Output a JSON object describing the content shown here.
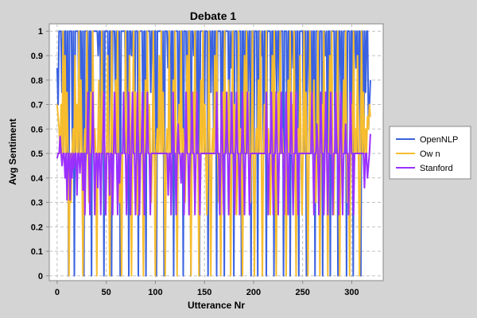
{
  "chart_data": {
    "type": "line",
    "title": "Debate 1",
    "xlabel": "Utterance Nr",
    "ylabel": "Avg Sentiment",
    "xlim": [
      -8,
      332
    ],
    "ylim": [
      -0.02,
      1.03
    ],
    "x_ticks": [
      0,
      50,
      100,
      150,
      200,
      250,
      300
    ],
    "y_ticks": [
      0,
      0.1,
      0.2,
      0.3,
      0.4,
      0.5,
      0.6,
      0.7,
      0.8,
      0.9,
      1
    ],
    "y_tick_labels": [
      "0",
      "0.1",
      "0.2",
      "0.3",
      "0.4",
      "0.5",
      "0.6",
      "0.7",
      "0.8",
      "0.9",
      "1"
    ],
    "x_tick_labels": [
      "0",
      "50",
      "100",
      "150",
      "200",
      "250",
      "300"
    ],
    "grid": true,
    "legend_position": "right",
    "x_count": 320,
    "series": [
      {
        "name": "OpenNLP",
        "color": "#3a62e0",
        "values": [
          0.85,
          0.7,
          1,
          1,
          1,
          0.75,
          1,
          0.5,
          1,
          1,
          0.5,
          1,
          0,
          1,
          1,
          1,
          0.5,
          1,
          0,
          1,
          1,
          1,
          1,
          0.5,
          1,
          1,
          0.5,
          1,
          0,
          1,
          1,
          1,
          1,
          0.5,
          1,
          1,
          0,
          1,
          1,
          1,
          1,
          1,
          1,
          0.9,
          1,
          1,
          0.5,
          1,
          1,
          0,
          1,
          1,
          1,
          1,
          0.5,
          1,
          1,
          0,
          1,
          1,
          1,
          0.75,
          1,
          1,
          0.5,
          1,
          0,
          1,
          1,
          1,
          1,
          1,
          0.5,
          1,
          1,
          0,
          1,
          1,
          0.9,
          1,
          1,
          0.5,
          1,
          1,
          1,
          0,
          1,
          1,
          1,
          1,
          0.5,
          1,
          1,
          0,
          1,
          1,
          1,
          1,
          0.75,
          1,
          1,
          0.5,
          1,
          1,
          0,
          1,
          1,
          1,
          1,
          1,
          0.5,
          1,
          0,
          1,
          1,
          1,
          0.85,
          1,
          1,
          0.5,
          1,
          1,
          0,
          1,
          1,
          1,
          1,
          0.5,
          1,
          0.75,
          1,
          1,
          0,
          1,
          1,
          1,
          0.5,
          1,
          1,
          1,
          0,
          1,
          1,
          0.9,
          1,
          1,
          0.5,
          1,
          1,
          0,
          1,
          1,
          1,
          1,
          0.5,
          1,
          1,
          1,
          0,
          1,
          1,
          0.75,
          1,
          1,
          0.5,
          1,
          1,
          0,
          1,
          1,
          1,
          1,
          0.5,
          1,
          1,
          0,
          1,
          1,
          1,
          1,
          0.5,
          1,
          0.85,
          1,
          1,
          0,
          1,
          1,
          1,
          0.5,
          1,
          1,
          1,
          0,
          1,
          1,
          0.5,
          1,
          1,
          1,
          0.75,
          1,
          1,
          0,
          1,
          1,
          0.5,
          1,
          1,
          1,
          0,
          1,
          1,
          1,
          0.9,
          1,
          0.5,
          1,
          1,
          0,
          1,
          1,
          1,
          1,
          0.5,
          1,
          1,
          0,
          1,
          1,
          0.75,
          1,
          1,
          0.5,
          1,
          1,
          1,
          0,
          1,
          1,
          1,
          0.5,
          1,
          1,
          0,
          1,
          1,
          0.85,
          1,
          1,
          0.5,
          1,
          1,
          0,
          1,
          1,
          1,
          1,
          0.5,
          1,
          1,
          0,
          1,
          1,
          0.75,
          1,
          1,
          0.5,
          1,
          1,
          0,
          1,
          1,
          1,
          0.5,
          1,
          1,
          1,
          0,
          1,
          1,
          0.9,
          1,
          0.5,
          1,
          1,
          0,
          1,
          1,
          1,
          1,
          0.5,
          1,
          1,
          0,
          1,
          1,
          0.75,
          1,
          0.5,
          1,
          1,
          1,
          0,
          1,
          1,
          1,
          0.5,
          1,
          1,
          0,
          1,
          1,
          0.85,
          1,
          0.5,
          1,
          1,
          0,
          1,
          1,
          0.5,
          1,
          0.75,
          1,
          1,
          0.6,
          0.7,
          0.8
        ]
      },
      {
        "name": "Ow n",
        "color": "#f7bd2e",
        "values": [
          0.7,
          0.65,
          0.6,
          0.5,
          0.7,
          0.5,
          1,
          0.5,
          0.9,
          0.5,
          0.75,
          0.5,
          0,
          0.5,
          0.3,
          0.5,
          0.6,
          0.5,
          0.9,
          0.5,
          0.7,
          0.5,
          1,
          0.5,
          0.8,
          0.5,
          0,
          0.5,
          0.6,
          0.5,
          1,
          0.5,
          0.3,
          0.5,
          0.75,
          0.5,
          1,
          0.5,
          0.6,
          0.5,
          0,
          0.5,
          0.8,
          0.5,
          0.5,
          1,
          0.5,
          0.7,
          0.5,
          0.25,
          0.5,
          0.9,
          0.5,
          0,
          0.5,
          1,
          0.5,
          0.6,
          0.5,
          0.8,
          0.5,
          1,
          0.5,
          0.3,
          0.5,
          0,
          0.5,
          0.7,
          0.5,
          1,
          0.5,
          0.6,
          0.5,
          0.9,
          0.5,
          0,
          0.5,
          1,
          0.5,
          0.75,
          0.5,
          0.25,
          0.5,
          1,
          0.5,
          0.6,
          0.5,
          0,
          0.5,
          0.8,
          0.5,
          1,
          0.5,
          0.7,
          0.5,
          0.3,
          0.5,
          1,
          0.5,
          0,
          0.5,
          0.6,
          0.5,
          0.9,
          0.5,
          1,
          0.5,
          0.75,
          0.5,
          0,
          0.5,
          0.6,
          0.5,
          1,
          0.5,
          0.25,
          0.5,
          0.8,
          0.5,
          1,
          0.5,
          0,
          0.5,
          0.7,
          0.5,
          1,
          0.5,
          0.6,
          0.5,
          0.3,
          0.5,
          0.9,
          0.5,
          1,
          0.5,
          0,
          0.5,
          0.75,
          0.5,
          1,
          0.5,
          0.6,
          0.5,
          0,
          0.5,
          0.8,
          0.5,
          1,
          0.5,
          0.7,
          0.5,
          0.25,
          0.5,
          1,
          0.5,
          0,
          0.5,
          0.6,
          0.5,
          0.9,
          0.5,
          1,
          0.5,
          0.3,
          0.5,
          0,
          0.5,
          0.75,
          0.5,
          1,
          0.5,
          0.6,
          0.5,
          0.8,
          0.5,
          0,
          0.5,
          1,
          0.5,
          0.7,
          0.5,
          0.25,
          0.5,
          1,
          0.5,
          0.6,
          0.5,
          0,
          0.5,
          0.9,
          0.5,
          1,
          0.5,
          0.75,
          0.5,
          0.3,
          0.5,
          1,
          0.5,
          0,
          0.5,
          0.6,
          0.5,
          0.8,
          0.5,
          1,
          0.5,
          0,
          0.5,
          0.7,
          0.5,
          1,
          0.5,
          0.6,
          0.5,
          0.25,
          0.5,
          0.9,
          0.5,
          1,
          0.5,
          0,
          0.5,
          0.75,
          0.5,
          1,
          0.5,
          0.6,
          0.5,
          0.3,
          0.5,
          0,
          0.5,
          0.8,
          0.5,
          1,
          0.5,
          0.7,
          0.5,
          1,
          0.5,
          0,
          0.5,
          0.6,
          0.5,
          0.9,
          0.5,
          0.25,
          0.5,
          1,
          0.5,
          0.75,
          0.5,
          0,
          0.5,
          1,
          0.5,
          0.6,
          0.5,
          0.8,
          0.5,
          0.3,
          0.5,
          1,
          0.5,
          0,
          0.5,
          0.7,
          0.5,
          1,
          0.5,
          0.6,
          0.5,
          0,
          0.5,
          0.9,
          0.5,
          1,
          0.5,
          0.25,
          0.5,
          0.75,
          0.5,
          1,
          0.5,
          0,
          0.5,
          0.6,
          0.5,
          0.8,
          0.5,
          1,
          0.5,
          0.3,
          0.5,
          0,
          0.5,
          0.7,
          0.5,
          1,
          0.5,
          0.6,
          0.5,
          0.9,
          0.5,
          0,
          0.5,
          1,
          0.5,
          0.75,
          0.5,
          0.6,
          0.5,
          0.65,
          0.6,
          0.7,
          0.65
        ]
      },
      {
        "name": "Stanford",
        "color": "#9b30ff",
        "values": [
          0.48,
          0.5,
          0.5,
          0.57,
          0.5,
          0.45,
          0.5,
          0.5,
          0.4,
          0.5,
          0.31,
          0.5,
          0.5,
          0.31,
          0.5,
          0.4,
          0.5,
          0.44,
          0.5,
          0.5,
          0.33,
          0.5,
          0.5,
          0.42,
          0.5,
          0.5,
          0.35,
          0.5,
          0.25,
          0.5,
          0.5,
          0.75,
          0.5,
          0.25,
          0.5,
          0.5,
          0.75,
          0.5,
          0.25,
          0.5,
          0.5,
          0.36,
          0.5,
          0.5,
          0.25,
          0.5,
          0.5,
          0.75,
          0.5,
          0.25,
          0.5,
          0.5,
          0.5,
          0.33,
          0.5,
          0.5,
          0.25,
          0.5,
          0.75,
          0.5,
          0.5,
          0.25,
          0.5,
          0.38,
          0.5,
          0.5,
          0.5,
          0.75,
          0.5,
          0.5,
          0.25,
          0.5,
          0.75,
          0.5,
          0.25,
          0.5,
          0.75,
          0.5,
          0.5,
          0.25,
          0.5,
          0.75,
          0.5,
          0.25,
          0.5,
          0.5,
          0.75,
          0.5,
          0.25,
          0.5,
          0.5,
          0.75,
          0.5,
          0.5,
          0.25,
          0.5,
          0.5,
          0.5,
          0.5,
          0.5,
          0.5,
          0.5,
          0.5,
          0.5,
          0.5,
          0.5,
          0.5,
          0.5,
          0.5,
          0.5,
          0.5,
          0.5,
          0.33,
          0.5,
          0.5,
          0.25,
          0.5,
          0.75,
          0.5,
          0.5,
          0.25,
          0.5,
          0.62,
          0.5,
          0.5,
          0.38,
          0.5,
          0.5,
          0.25,
          0.5,
          0.75,
          0.5,
          0.5,
          0.25,
          0.5,
          0.5,
          0.75,
          0.5,
          0.5,
          0.25,
          0.5,
          0.75,
          0.5,
          0.5,
          0.25,
          0.5,
          0.5,
          0.5,
          0.5,
          0.5,
          0.5,
          0.5,
          0.5,
          0.5,
          0.5,
          0.5,
          0.5,
          0.5,
          0.5,
          0.5,
          0.5,
          0.75,
          0.5,
          0.5,
          0.25,
          0.5,
          0.75,
          0.5,
          0.25,
          0.5,
          0.5,
          0.75,
          0.5,
          0.25,
          0.5,
          0.5,
          0.75,
          0.5,
          0.5,
          0.25,
          0.5,
          0.75,
          0.5,
          0.5,
          0.25,
          0.5,
          0.5,
          0.75,
          0.5,
          0.25,
          0.5,
          0.5,
          0.75,
          0.5,
          0.25,
          0.5,
          0.5,
          0.5,
          0.5,
          0.5,
          0.5,
          0.5,
          0.5,
          0.5,
          0.5,
          0.5,
          0.5,
          0.5,
          0.5,
          0.5,
          0.5,
          0.75,
          0.5,
          0.25,
          0.5,
          0.5,
          0.75,
          0.5,
          0.25,
          0.5,
          0.5,
          0.75,
          0.5,
          0.25,
          0.5,
          0.5,
          0.75,
          0.5,
          0.5,
          0.25,
          0.5,
          0.75,
          0.5,
          0.25,
          0.5,
          0.5,
          0.75,
          0.5,
          0.25,
          0.5,
          0.5,
          0.75,
          0.5,
          0.25,
          0.5,
          0.5,
          0.5,
          0.5,
          0.5,
          0.5,
          0.5,
          0.5,
          0.5,
          0.5,
          0.5,
          0.5,
          0.5,
          0.75,
          0.5,
          0.25,
          0.5,
          0.5,
          0.62,
          0.5,
          0.25,
          0.5,
          0.75,
          0.5,
          0.5,
          0.25,
          0.5,
          0.75,
          0.5,
          0.25,
          0.5,
          0.5,
          0.75,
          0.5,
          0.25,
          0.5,
          0.5,
          0.75,
          0.5,
          0.5,
          0.25,
          0.5,
          0.75,
          0.5,
          0.25,
          0.5,
          0.5,
          0.62,
          0.5,
          0.5,
          0.25,
          0.5,
          0.75,
          0.5,
          0.5,
          0.25,
          0.5,
          0.5,
          0.5,
          0.5,
          0.5,
          0.5,
          0.5,
          0.5,
          0.5,
          0.5,
          0.36,
          0.5,
          0.5,
          0.4,
          0.45,
          0.5,
          0.58
        ]
      }
    ]
  }
}
